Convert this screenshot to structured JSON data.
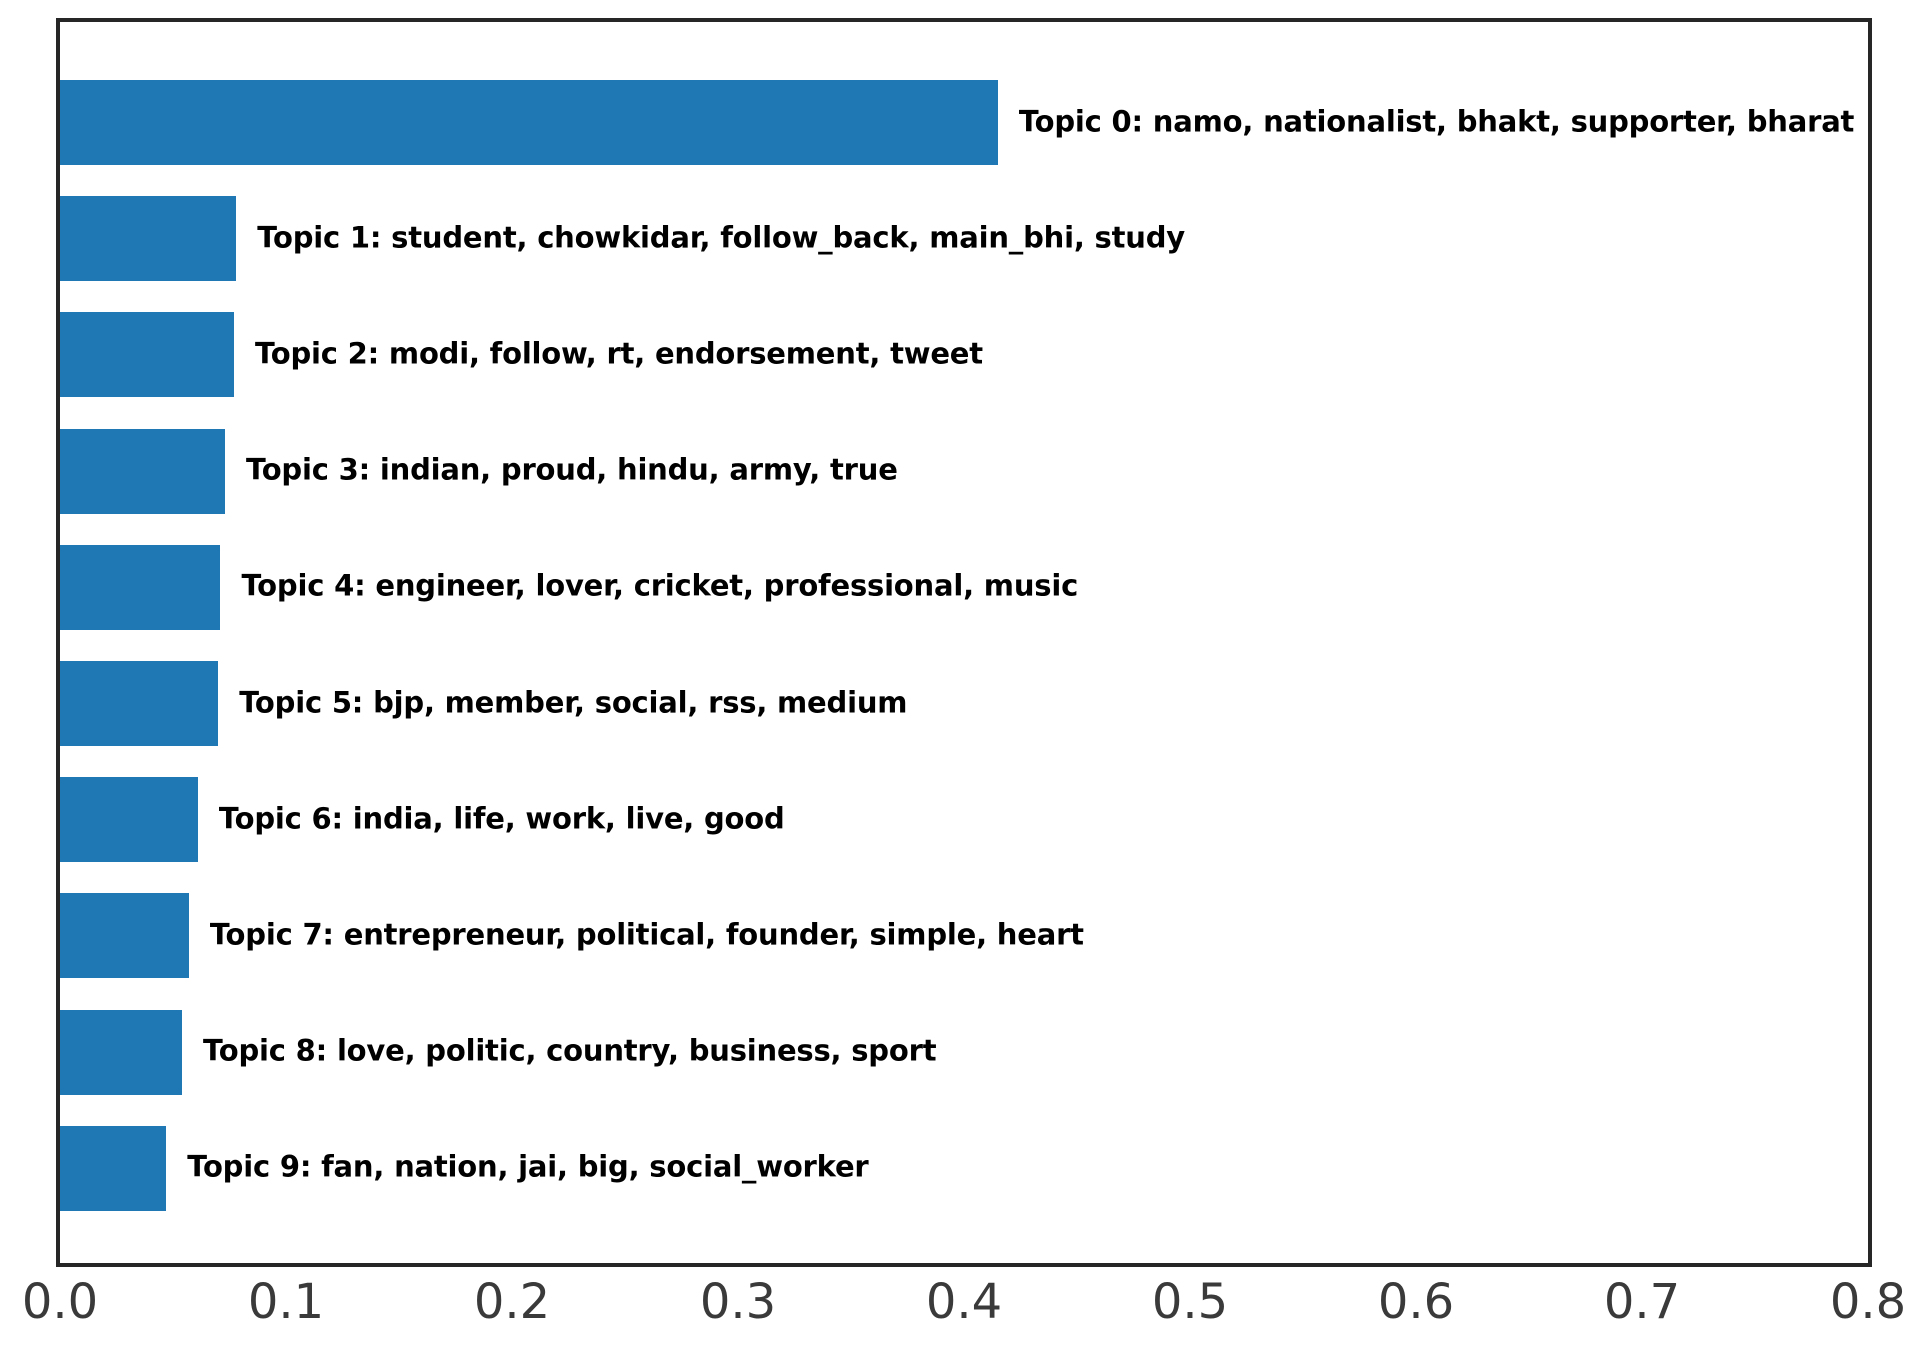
{
  "chart_data": {
    "type": "bar",
    "orientation": "horizontal",
    "title": "",
    "xlabel": "",
    "ylabel": "",
    "categories": [
      "Topic 0: namo, nationalist, bhakt, supporter, bharat",
      "Topic 1: student, chowkidar, follow_back, main_bhi, study",
      "Topic 2: modi, follow, rt, endorsement, tweet",
      "Topic 3: indian, proud, hindu, army, true",
      "Topic 4: engineer, lover, cricket, professional, music",
      "Topic 5: bjp, member, social, rss, medium",
      "Topic 6: india, life, work, live, good",
      "Topic 7: entrepreneur, political, founder, simple, heart",
      "Topic 8: love, politic, country, business, sport",
      "Topic 9: fan, nation, jai, big, social_worker"
    ],
    "values": [
      0.415,
      0.078,
      0.077,
      0.073,
      0.071,
      0.07,
      0.061,
      0.057,
      0.054,
      0.047
    ],
    "xlim": [
      0,
      0.8
    ],
    "xticks": [
      "0.0",
      "0.1",
      "0.2",
      "0.3",
      "0.4",
      "0.5",
      "0.6",
      "0.7",
      "0.8"
    ],
    "grid": false,
    "legend": "none",
    "bar_label_position": "right-of-bar"
  },
  "colors": {
    "bar": "#1f77b4",
    "spine": "#262626",
    "tick_text": "#3a3a3a",
    "label_text": "#000000",
    "background": "#ffffff"
  }
}
